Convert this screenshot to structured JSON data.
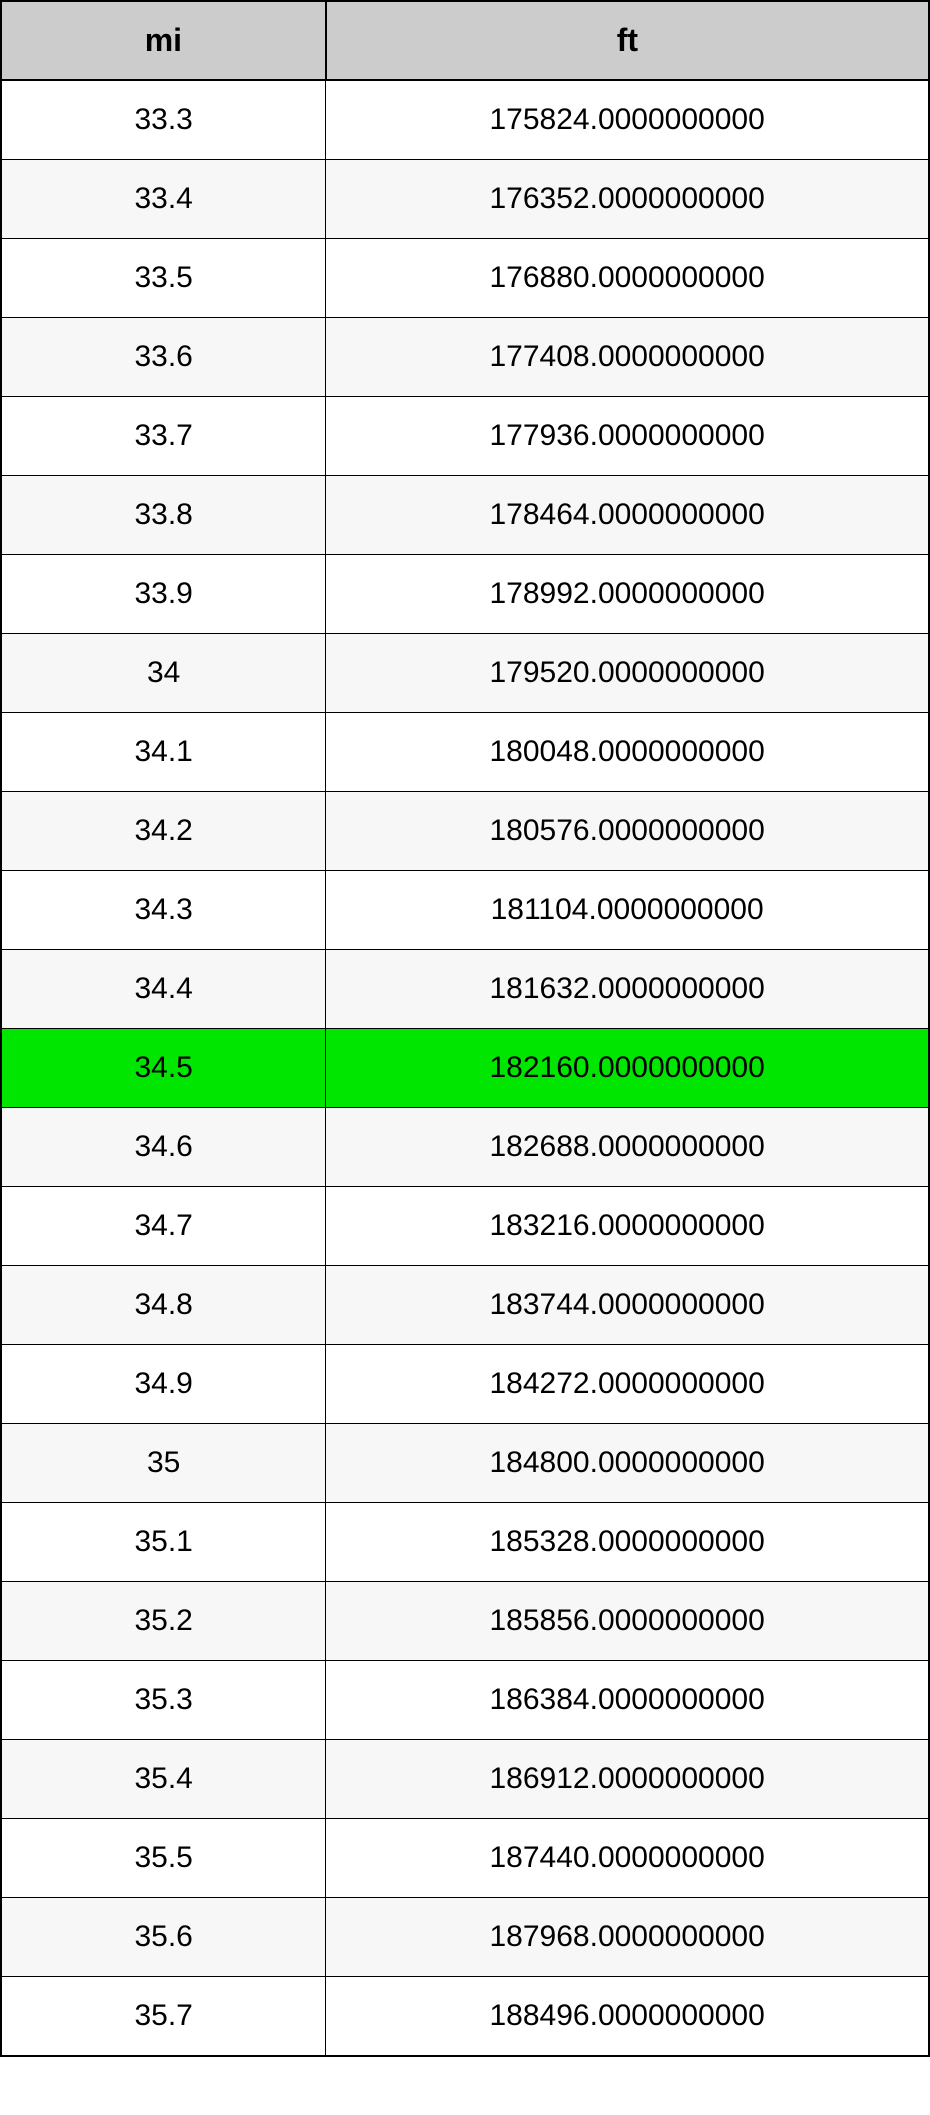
{
  "table": {
    "columns": [
      {
        "label": "mi",
        "key": "mi"
      },
      {
        "label": "ft",
        "key": "ft"
      }
    ],
    "highlighted_row_index": 12,
    "highlight_color": "#00e600",
    "header_bg": "#cccccc",
    "even_row_bg": "#f7f7f7",
    "odd_row_bg": "#ffffff",
    "border_color": "#000000",
    "font_size_header": 32,
    "font_size_cell": 30,
    "rows": [
      {
        "mi": "33.3",
        "ft": "175824.0000000000"
      },
      {
        "mi": "33.4",
        "ft": "176352.0000000000"
      },
      {
        "mi": "33.5",
        "ft": "176880.0000000000"
      },
      {
        "mi": "33.6",
        "ft": "177408.0000000000"
      },
      {
        "mi": "33.7",
        "ft": "177936.0000000000"
      },
      {
        "mi": "33.8",
        "ft": "178464.0000000000"
      },
      {
        "mi": "33.9",
        "ft": "178992.0000000000"
      },
      {
        "mi": "34",
        "ft": "179520.0000000000"
      },
      {
        "mi": "34.1",
        "ft": "180048.0000000000"
      },
      {
        "mi": "34.2",
        "ft": "180576.0000000000"
      },
      {
        "mi": "34.3",
        "ft": "181104.0000000000"
      },
      {
        "mi": "34.4",
        "ft": "181632.0000000000"
      },
      {
        "mi": "34.5",
        "ft": "182160.0000000000"
      },
      {
        "mi": "34.6",
        "ft": "182688.0000000000"
      },
      {
        "mi": "34.7",
        "ft": "183216.0000000000"
      },
      {
        "mi": "34.8",
        "ft": "183744.0000000000"
      },
      {
        "mi": "34.9",
        "ft": "184272.0000000000"
      },
      {
        "mi": "35",
        "ft": "184800.0000000000"
      },
      {
        "mi": "35.1",
        "ft": "185328.0000000000"
      },
      {
        "mi": "35.2",
        "ft": "185856.0000000000"
      },
      {
        "mi": "35.3",
        "ft": "186384.0000000000"
      },
      {
        "mi": "35.4",
        "ft": "186912.0000000000"
      },
      {
        "mi": "35.5",
        "ft": "187440.0000000000"
      },
      {
        "mi": "35.6",
        "ft": "187968.0000000000"
      },
      {
        "mi": "35.7",
        "ft": "188496.0000000000"
      }
    ]
  }
}
